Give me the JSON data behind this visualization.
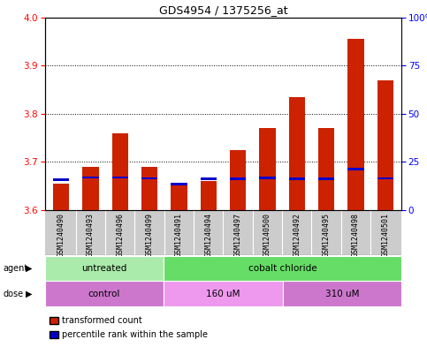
{
  "title": "GDS4954 / 1375256_at",
  "samples": [
    "GSM1240490",
    "GSM1240493",
    "GSM1240496",
    "GSM1240499",
    "GSM1240491",
    "GSM1240494",
    "GSM1240497",
    "GSM1240500",
    "GSM1240492",
    "GSM1240495",
    "GSM1240498",
    "GSM1240501"
  ],
  "red_values": [
    3.655,
    3.69,
    3.76,
    3.69,
    3.655,
    3.66,
    3.725,
    3.77,
    3.835,
    3.77,
    3.955,
    3.87
  ],
  "blue_bottoms": [
    3.661,
    3.665,
    3.665,
    3.663,
    3.651,
    3.662,
    3.662,
    3.664,
    3.662,
    3.662,
    3.683,
    3.663
  ],
  "blue_heights": [
    0.005,
    0.005,
    0.005,
    0.005,
    0.005,
    0.005,
    0.005,
    0.005,
    0.005,
    0.005,
    0.005,
    0.005
  ],
  "ylim_left": [
    3.6,
    4.0
  ],
  "ylim_right": [
    0,
    100
  ],
  "yticks_left": [
    3.6,
    3.7,
    3.8,
    3.9,
    4.0
  ],
  "yticks_right": [
    0,
    25,
    50,
    75,
    100
  ],
  "ytick_labels_right": [
    "0",
    "25",
    "50",
    "75",
    "100%"
  ],
  "agent_groups": [
    {
      "label": "untreated",
      "start": 0,
      "end": 4,
      "color": "#aaeaaa"
    },
    {
      "label": "cobalt chloride",
      "start": 4,
      "end": 12,
      "color": "#66dd66"
    }
  ],
  "dose_groups": [
    {
      "label": "control",
      "start": 0,
      "end": 4,
      "color": "#cc77cc"
    },
    {
      "label": "160 uM",
      "start": 4,
      "end": 8,
      "color": "#ee99ee"
    },
    {
      "label": "310 uM",
      "start": 8,
      "end": 12,
      "color": "#cc77cc"
    }
  ],
  "bar_width": 0.55,
  "bar_bottom": 3.6,
  "red_color": "#cc2200",
  "blue_color": "#0000cc",
  "legend_red": "transformed count",
  "legend_blue": "percentile rank within the sample"
}
